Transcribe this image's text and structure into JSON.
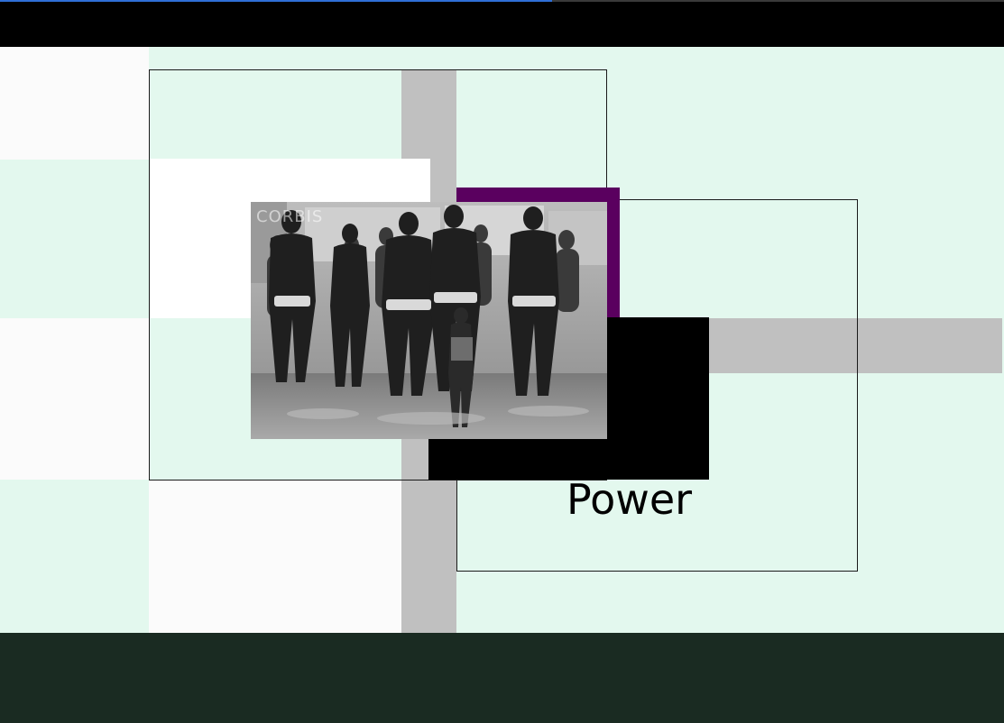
{
  "page": {
    "loading_progress": 0.55
  },
  "colors": {
    "background": "#e3f8ee",
    "header": "#000000",
    "footer": "#1a2b22",
    "gray_block": "#c0c0c0",
    "purple_block": "#5a005f",
    "accent_progress": "#2f6fd6"
  },
  "hero": {
    "title": "Power",
    "image": {
      "description_icon": "photo-wrestlers-running",
      "watermark": "CORBIS"
    }
  }
}
